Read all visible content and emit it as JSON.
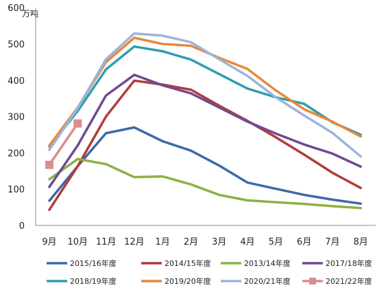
{
  "chart_data": {
    "type": "line",
    "title": "",
    "unit_label": "万吨",
    "xlabel": "",
    "ylabel": "",
    "categories": [
      "9月",
      "10月",
      "11月",
      "12月",
      "1月",
      "2月",
      "3月",
      "4月",
      "5月",
      "6月",
      "7月",
      "8月"
    ],
    "ylim": [
      0,
      600
    ],
    "yticks": [
      0,
      100,
      200,
      300,
      400,
      500,
      600
    ],
    "grid": false,
    "legend_position": "bottom",
    "series": [
      {
        "name": "2015/16年度",
        "color": "#3D6AA8",
        "marker": "none",
        "values": [
          68,
          163,
          254,
          270,
          232,
          206,
          165,
          118,
          101,
          84,
          71,
          60
        ]
      },
      {
        "name": "2014/15年度",
        "color": "#B23C3A",
        "marker": "none",
        "values": [
          43,
          163,
          300,
          399,
          388,
          374,
          330,
          288,
          243,
          195,
          145,
          103
        ]
      },
      {
        "name": "2013/14年度",
        "color": "#8DB044",
        "marker": "none",
        "values": [
          127,
          183,
          169,
          133,
          135,
          113,
          84,
          69,
          64,
          59,
          53,
          48
        ]
      },
      {
        "name": "2017/18年度",
        "color": "#6E4A93",
        "marker": "none",
        "values": [
          106,
          220,
          358,
          415,
          386,
          364,
          325,
          286,
          253,
          223,
          198,
          162
        ]
      },
      {
        "name": "2018/19年度",
        "color": "#2F9DAE",
        "marker": "none",
        "values": [
          217,
          315,
          430,
          493,
          480,
          457,
          417,
          377,
          353,
          335,
          284,
          250
        ]
      },
      {
        "name": "2019/20年度",
        "color": "#E8883A",
        "marker": "none",
        "values": [
          220,
          325,
          450,
          517,
          500,
          495,
          462,
          431,
          372,
          320,
          286,
          245
        ]
      },
      {
        "name": "2020/21年度",
        "color": "#9DB4DA",
        "marker": "none",
        "values": [
          208,
          323,
          458,
          529,
          523,
          505,
          458,
          412,
          353,
          303,
          255,
          190
        ]
      },
      {
        "name": "2021/22年度",
        "color": "#D98E8E",
        "marker": "square",
        "values": [
          167,
          281,
          null,
          null,
          null,
          null,
          null,
          null,
          null,
          null,
          null,
          null
        ]
      }
    ]
  }
}
